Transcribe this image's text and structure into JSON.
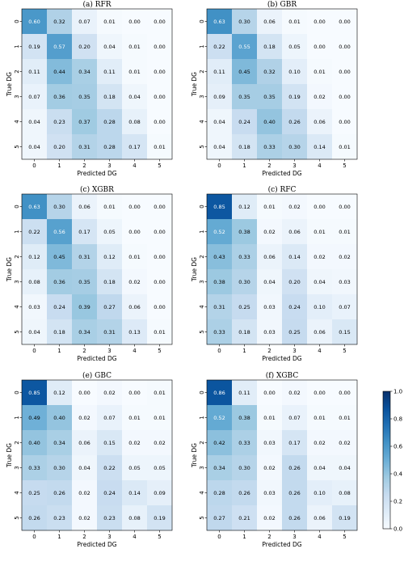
{
  "chart_data": {
    "type": "heatmap",
    "categories": [
      "0",
      "1",
      "2",
      "3",
      "4",
      "5"
    ],
    "xlabel": "Predicted DG",
    "ylabel": "True DG",
    "value_range": [
      0.0,
      1.0
    ],
    "colormap": [
      "#f7fbff",
      "#deebf7",
      "#c6dbef",
      "#9ecae1",
      "#6baed6",
      "#4292c6",
      "#2171b5",
      "#08519c",
      "#08306b"
    ],
    "colorbar_ticks": [
      "0.0",
      "0.2",
      "0.4",
      "0.6",
      "0.8",
      "1.0"
    ],
    "panels": [
      {
        "title": "(a) RFR",
        "matrix": [
          [
            0.6,
            0.32,
            0.07,
            0.01,
            0.0,
            0.0
          ],
          [
            0.19,
            0.57,
            0.2,
            0.04,
            0.01,
            0.0
          ],
          [
            0.11,
            0.44,
            0.34,
            0.11,
            0.01,
            0.0
          ],
          [
            0.07,
            0.36,
            0.35,
            0.18,
            0.04,
            0.0
          ],
          [
            0.04,
            0.23,
            0.37,
            0.28,
            0.08,
            0.0
          ],
          [
            0.04,
            0.2,
            0.31,
            0.28,
            0.17,
            0.01
          ]
        ]
      },
      {
        "title": "(b) GBR",
        "matrix": [
          [
            0.63,
            0.3,
            0.06,
            0.01,
            0.0,
            0.0
          ],
          [
            0.22,
            0.55,
            0.18,
            0.05,
            0.0,
            0.0
          ],
          [
            0.11,
            0.45,
            0.32,
            0.1,
            0.01,
            0.0
          ],
          [
            0.09,
            0.35,
            0.35,
            0.19,
            0.02,
            0.0
          ],
          [
            0.04,
            0.24,
            0.4,
            0.26,
            0.06,
            0.0
          ],
          [
            0.04,
            0.18,
            0.33,
            0.3,
            0.14,
            0.01
          ]
        ]
      },
      {
        "title": "(c) XGBR",
        "matrix": [
          [
            0.63,
            0.3,
            0.06,
            0.01,
            0.0,
            0.0
          ],
          [
            0.22,
            0.56,
            0.17,
            0.05,
            0.0,
            0.0
          ],
          [
            0.12,
            0.45,
            0.31,
            0.12,
            0.01,
            0.0
          ],
          [
            0.08,
            0.36,
            0.35,
            0.18,
            0.02,
            0.0
          ],
          [
            0.03,
            0.24,
            0.39,
            0.27,
            0.06,
            0.0
          ],
          [
            0.04,
            0.18,
            0.34,
            0.31,
            0.13,
            0.01
          ]
        ]
      },
      {
        "title": "(c) RFC",
        "matrix": [
          [
            0.85,
            0.12,
            0.01,
            0.02,
            0.0,
            0.0
          ],
          [
            0.52,
            0.38,
            0.02,
            0.06,
            0.01,
            0.01
          ],
          [
            0.43,
            0.33,
            0.06,
            0.14,
            0.02,
            0.02
          ],
          [
            0.38,
            0.3,
            0.04,
            0.2,
            0.04,
            0.03
          ],
          [
            0.31,
            0.25,
            0.03,
            0.24,
            0.1,
            0.07
          ],
          [
            0.33,
            0.18,
            0.03,
            0.25,
            0.06,
            0.15
          ]
        ]
      },
      {
        "title": "(e) GBC",
        "matrix": [
          [
            0.85,
            0.12,
            0.0,
            0.02,
            0.0,
            0.01
          ],
          [
            0.49,
            0.4,
            0.02,
            0.07,
            0.01,
            0.01
          ],
          [
            0.4,
            0.34,
            0.06,
            0.15,
            0.02,
            0.02
          ],
          [
            0.33,
            0.3,
            0.04,
            0.22,
            0.05,
            0.05
          ],
          [
            0.25,
            0.26,
            0.02,
            0.24,
            0.14,
            0.09
          ],
          [
            0.26,
            0.23,
            0.02,
            0.23,
            0.08,
            0.19
          ]
        ]
      },
      {
        "title": "(f) XGBC",
        "matrix": [
          [
            0.86,
            0.11,
            0.0,
            0.02,
            0.0,
            0.0
          ],
          [
            0.52,
            0.38,
            0.01,
            0.07,
            0.01,
            0.01
          ],
          [
            0.42,
            0.33,
            0.03,
            0.17,
            0.02,
            0.02
          ],
          [
            0.34,
            0.3,
            0.02,
            0.26,
            0.04,
            0.04
          ],
          [
            0.28,
            0.26,
            0.03,
            0.26,
            0.1,
            0.08
          ],
          [
            0.27,
            0.21,
            0.02,
            0.26,
            0.06,
            0.19
          ]
        ]
      }
    ]
  }
}
